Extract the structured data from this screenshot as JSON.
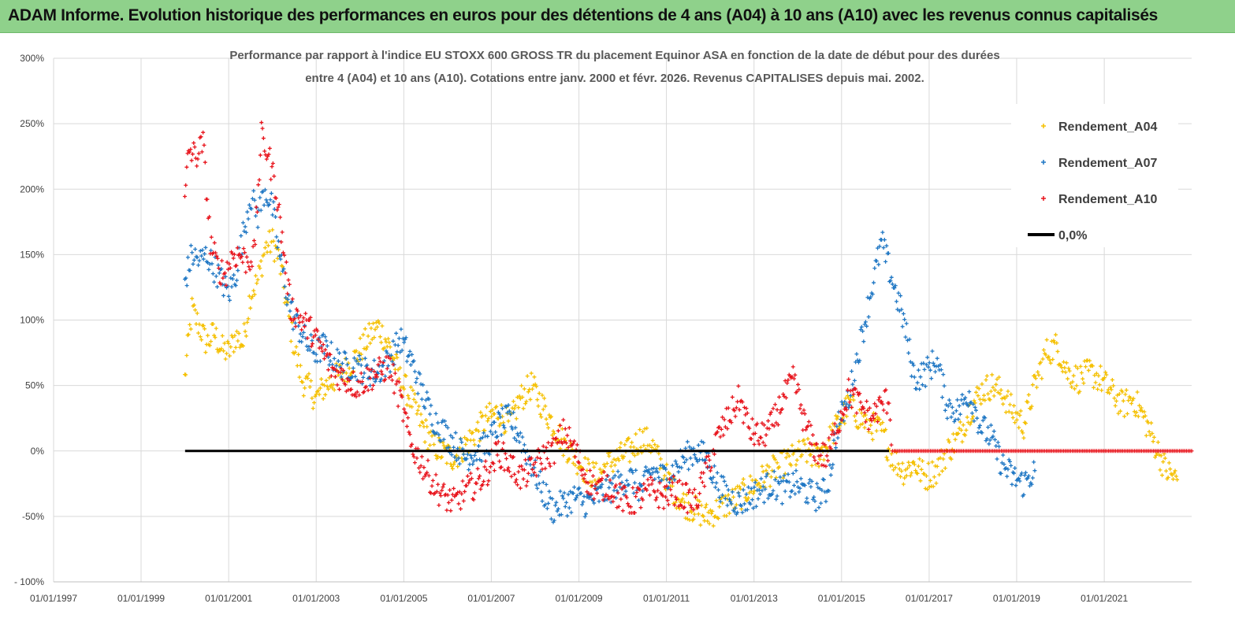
{
  "header": {
    "title": "ADAM Informe. Evolution historique des performances en euros pour des détentions de 4 ans (A04) à 10 ans (A10) avec les revenus connus capitalisés"
  },
  "chart_data": {
    "type": "scatter",
    "title_line1": "Performance par rapport à l'indice EU STOXX 600 GROSS TR  du placement Equinor ASA en fonction de la date de début pour des durées",
    "title_line2": "entre 4 (A04) et 10 ans (A10). Cotations entre janv. 2000 et févr. 2026. Revenus CAPITALISES depuis mai. 2002.",
    "xlabel": "",
    "ylabel": "",
    "x_ticks": [
      "01/01/1997",
      "01/01/1999",
      "01/01/2001",
      "01/01/2003",
      "01/01/2005",
      "01/01/2007",
      "01/01/2009",
      "01/01/2011",
      "01/01/2013",
      "01/01/2015",
      "01/01/2017",
      "01/01/2019",
      "01/01/2021"
    ],
    "y_ticks": [
      "300%",
      "250%",
      "200%",
      "150%",
      "100%",
      "50%",
      "0%",
      "-50%",
      "- 100%"
    ],
    "ylim": [
      -100,
      300
    ],
    "xlim": [
      "1997-01-01",
      "2022-12-31"
    ],
    "grid": true,
    "legend_position": "top-right",
    "reference_line": {
      "name": "0,0%",
      "value": 0,
      "from": "2000-01-03",
      "to": "2016-02-01",
      "color": "#000000"
    },
    "series": [
      {
        "name": "Rendement_A04",
        "color": "#f5c000",
        "points": [
          [
            "2000-01-01",
            55
          ],
          [
            "2000-02-01",
            85
          ],
          [
            "2000-03-01",
            108
          ],
          [
            "2000-05-01",
            95
          ],
          [
            "2000-07-01",
            82
          ],
          [
            "2000-09-01",
            90
          ],
          [
            "2000-11-01",
            78
          ],
          [
            "2001-01-01",
            75
          ],
          [
            "2001-03-01",
            88
          ],
          [
            "2001-05-01",
            82
          ],
          [
            "2001-07-01",
            120
          ],
          [
            "2001-09-01",
            130
          ],
          [
            "2001-11-01",
            155
          ],
          [
            "2002-01-01",
            160
          ],
          [
            "2002-03-01",
            145
          ],
          [
            "2002-05-01",
            110
          ],
          [
            "2002-07-01",
            80
          ],
          [
            "2002-09-01",
            55
          ],
          [
            "2002-11-01",
            48
          ],
          [
            "2003-01-01",
            40
          ],
          [
            "2003-03-01",
            48
          ],
          [
            "2003-06-01",
            55
          ],
          [
            "2003-09-01",
            62
          ],
          [
            "2003-12-01",
            72
          ],
          [
            "2004-03-01",
            85
          ],
          [
            "2004-06-01",
            95
          ],
          [
            "2004-09-01",
            80
          ],
          [
            "2004-12-01",
            55
          ],
          [
            "2005-03-01",
            40
          ],
          [
            "2005-06-01",
            20
          ],
          [
            "2005-09-01",
            5
          ],
          [
            "2005-12-01",
            -2
          ],
          [
            "2006-03-01",
            -5
          ],
          [
            "2006-06-01",
            5
          ],
          [
            "2006-09-01",
            15
          ],
          [
            "2006-12-01",
            25
          ],
          [
            "2007-03-01",
            30
          ],
          [
            "2007-06-01",
            20
          ],
          [
            "2007-09-01",
            40
          ],
          [
            "2007-12-01",
            50
          ],
          [
            "2008-03-01",
            35
          ],
          [
            "2008-06-01",
            20
          ],
          [
            "2008-09-01",
            5
          ],
          [
            "2008-12-01",
            -5
          ],
          [
            "2009-03-01",
            -15
          ],
          [
            "2009-06-01",
            -20
          ],
          [
            "2009-09-01",
            -10
          ],
          [
            "2009-12-01",
            -5
          ],
          [
            "2010-03-01",
            0
          ],
          [
            "2010-06-01",
            10
          ],
          [
            "2010-09-01",
            5
          ],
          [
            "2010-12-01",
            -15
          ],
          [
            "2011-03-01",
            -30
          ],
          [
            "2011-06-01",
            -40
          ],
          [
            "2011-09-01",
            -45
          ],
          [
            "2011-12-01",
            -50
          ],
          [
            "2012-03-01",
            -45
          ],
          [
            "2012-06-01",
            -40
          ],
          [
            "2012-09-01",
            -35
          ],
          [
            "2012-12-01",
            -28
          ],
          [
            "2013-03-01",
            -22
          ],
          [
            "2013-06-01",
            -15
          ],
          [
            "2013-09-01",
            -10
          ],
          [
            "2013-12-01",
            -5
          ],
          [
            "2014-03-01",
            0
          ],
          [
            "2014-06-01",
            -5
          ],
          [
            "2014-09-01",
            5
          ],
          [
            "2014-12-01",
            20
          ],
          [
            "2015-03-01",
            35
          ],
          [
            "2015-06-01",
            25
          ],
          [
            "2015-09-01",
            20
          ],
          [
            "2015-12-01",
            15
          ],
          [
            "2016-03-01",
            -5
          ],
          [
            "2016-06-01",
            -15
          ],
          [
            "2016-09-01",
            -10
          ],
          [
            "2016-12-01",
            -20
          ],
          [
            "2017-03-01",
            -15
          ],
          [
            "2017-06-01",
            0
          ],
          [
            "2017-09-01",
            10
          ],
          [
            "2017-12-01",
            30
          ],
          [
            "2018-03-01",
            45
          ],
          [
            "2018-06-01",
            50
          ],
          [
            "2018-09-01",
            45
          ],
          [
            "2018-12-01",
            30
          ],
          [
            "2019-03-01",
            20
          ],
          [
            "2019-06-01",
            50
          ],
          [
            "2019-09-01",
            75
          ],
          [
            "2019-12-01",
            80
          ],
          [
            "2020-03-01",
            60
          ],
          [
            "2020-06-01",
            55
          ],
          [
            "2020-09-01",
            60
          ],
          [
            "2020-12-01",
            55
          ],
          [
            "2021-03-01",
            45
          ],
          [
            "2021-06-01",
            35
          ],
          [
            "2021-09-01",
            40
          ],
          [
            "2021-12-01",
            25
          ],
          [
            "2022-03-01",
            5
          ],
          [
            "2022-06-01",
            -15
          ],
          [
            "2022-09-01",
            -22
          ]
        ]
      },
      {
        "name": "Rendement_A07",
        "color": "#1f77c4",
        "points": [
          [
            "2000-01-01",
            130
          ],
          [
            "2000-03-01",
            150
          ],
          [
            "2000-05-01",
            145
          ],
          [
            "2000-07-01",
            150
          ],
          [
            "2000-09-01",
            140
          ],
          [
            "2000-11-01",
            130
          ],
          [
            "2001-01-01",
            120
          ],
          [
            "2001-03-01",
            135
          ],
          [
            "2001-05-01",
            165
          ],
          [
            "2001-07-01",
            195
          ],
          [
            "2001-09-01",
            180
          ],
          [
            "2001-11-01",
            200
          ],
          [
            "2002-01-01",
            185
          ],
          [
            "2002-03-01",
            150
          ],
          [
            "2002-05-01",
            120
          ],
          [
            "2002-07-01",
            100
          ],
          [
            "2002-09-01",
            90
          ],
          [
            "2002-11-01",
            80
          ],
          [
            "2003-01-01",
            75
          ],
          [
            "2003-03-01",
            80
          ],
          [
            "2003-06-01",
            70
          ],
          [
            "2003-09-01",
            65
          ],
          [
            "2003-12-01",
            65
          ],
          [
            "2004-03-01",
            60
          ],
          [
            "2004-06-01",
            60
          ],
          [
            "2004-09-01",
            70
          ],
          [
            "2004-12-01",
            85
          ],
          [
            "2005-03-01",
            70
          ],
          [
            "2005-06-01",
            45
          ],
          [
            "2005-09-01",
            25
          ],
          [
            "2005-12-01",
            15
          ],
          [
            "2006-03-01",
            5
          ],
          [
            "2006-06-01",
            -5
          ],
          [
            "2006-09-01",
            0
          ],
          [
            "2006-12-01",
            5
          ],
          [
            "2007-03-01",
            20
          ],
          [
            "2007-06-01",
            25
          ],
          [
            "2007-09-01",
            10
          ],
          [
            "2007-12-01",
            -10
          ],
          [
            "2008-03-01",
            -30
          ],
          [
            "2008-06-01",
            -45
          ],
          [
            "2008-09-01",
            -40
          ],
          [
            "2008-12-01",
            -35
          ],
          [
            "2009-03-01",
            -40
          ],
          [
            "2009-06-01",
            -35
          ],
          [
            "2009-09-01",
            -30
          ],
          [
            "2009-12-01",
            -25
          ],
          [
            "2010-03-01",
            -20
          ],
          [
            "2010-06-01",
            -30
          ],
          [
            "2010-09-01",
            -15
          ],
          [
            "2010-12-01",
            -20
          ],
          [
            "2011-03-01",
            -15
          ],
          [
            "2011-06-01",
            -5
          ],
          [
            "2011-09-01",
            0
          ],
          [
            "2011-12-01",
            -5
          ],
          [
            "2012-03-01",
            -25
          ],
          [
            "2012-06-01",
            -35
          ],
          [
            "2012-09-01",
            -40
          ],
          [
            "2012-12-01",
            -35
          ],
          [
            "2013-03-01",
            -30
          ],
          [
            "2013-06-01",
            -25
          ],
          [
            "2013-09-01",
            -30
          ],
          [
            "2013-12-01",
            -25
          ],
          [
            "2014-03-01",
            -30
          ],
          [
            "2014-06-01",
            -35
          ],
          [
            "2014-09-01",
            -30
          ],
          [
            "2014-12-01",
            20
          ],
          [
            "2015-03-01",
            40
          ],
          [
            "2015-06-01",
            80
          ],
          [
            "2015-09-01",
            120
          ],
          [
            "2015-12-01",
            160
          ],
          [
            "2016-03-01",
            130
          ],
          [
            "2016-06-01",
            100
          ],
          [
            "2016-09-01",
            55
          ],
          [
            "2016-12-01",
            60
          ],
          [
            "2017-03-01",
            70
          ],
          [
            "2017-06-01",
            35
          ],
          [
            "2017-09-01",
            30
          ],
          [
            "2017-12-01",
            45
          ],
          [
            "2018-03-01",
            20
          ],
          [
            "2018-06-01",
            10
          ],
          [
            "2018-09-01",
            -10
          ],
          [
            "2018-12-01",
            -20
          ],
          [
            "2019-03-01",
            -25
          ],
          [
            "2019-06-01",
            -15
          ]
        ]
      },
      {
        "name": "Rendement_A10",
        "color": "#e8141c",
        "points": [
          [
            "2000-01-01",
            190
          ],
          [
            "2000-02-01",
            230
          ],
          [
            "2000-04-01",
            225
          ],
          [
            "2000-06-01",
            235
          ],
          [
            "2000-08-01",
            160
          ],
          [
            "2000-10-01",
            140
          ],
          [
            "2000-12-01",
            135
          ],
          [
            "2001-02-01",
            150
          ],
          [
            "2001-04-01",
            150
          ],
          [
            "2001-06-01",
            145
          ],
          [
            "2001-08-01",
            150
          ],
          [
            "2001-10-01",
            240
          ],
          [
            "2001-12-01",
            225
          ],
          [
            "2002-02-01",
            200
          ],
          [
            "2002-04-01",
            155
          ],
          [
            "2002-06-01",
            110
          ],
          [
            "2002-09-01",
            100
          ],
          [
            "2002-12-01",
            90
          ],
          [
            "2003-03-01",
            75
          ],
          [
            "2003-06-01",
            60
          ],
          [
            "2003-09-01",
            55
          ],
          [
            "2003-12-01",
            50
          ],
          [
            "2004-03-01",
            55
          ],
          [
            "2004-06-01",
            60
          ],
          [
            "2004-09-01",
            65
          ],
          [
            "2004-12-01",
            40
          ],
          [
            "2005-03-01",
            5
          ],
          [
            "2005-06-01",
            -10
          ],
          [
            "2005-09-01",
            -25
          ],
          [
            "2005-12-01",
            -35
          ],
          [
            "2006-03-01",
            -40
          ],
          [
            "2006-06-01",
            -30
          ],
          [
            "2006-09-01",
            -25
          ],
          [
            "2006-12-01",
            -15
          ],
          [
            "2007-03-01",
            0
          ],
          [
            "2007-06-01",
            -10
          ],
          [
            "2007-09-01",
            -20
          ],
          [
            "2007-12-01",
            -15
          ],
          [
            "2008-03-01",
            -5
          ],
          [
            "2008-06-01",
            0
          ],
          [
            "2008-09-01",
            15
          ],
          [
            "2008-12-01",
            0
          ],
          [
            "2009-03-01",
            -20
          ],
          [
            "2009-06-01",
            -30
          ],
          [
            "2009-09-01",
            -25
          ],
          [
            "2009-12-01",
            -35
          ],
          [
            "2010-03-01",
            -40
          ],
          [
            "2010-06-01",
            -35
          ],
          [
            "2010-09-01",
            -30
          ],
          [
            "2010-12-01",
            -35
          ],
          [
            "2011-03-01",
            -30
          ],
          [
            "2011-06-01",
            -35
          ],
          [
            "2011-09-01",
            -40
          ],
          [
            "2011-12-01",
            -15
          ],
          [
            "2012-03-01",
            10
          ],
          [
            "2012-06-01",
            25
          ],
          [
            "2012-09-01",
            40
          ],
          [
            "2012-12-01",
            15
          ],
          [
            "2013-03-01",
            10
          ],
          [
            "2013-06-01",
            20
          ],
          [
            "2013-09-01",
            40
          ],
          [
            "2013-12-01",
            55
          ],
          [
            "2014-03-01",
            20
          ],
          [
            "2014-06-01",
            0
          ],
          [
            "2014-09-01",
            -5
          ],
          [
            "2014-12-01",
            20
          ],
          [
            "2015-03-01",
            45
          ],
          [
            "2015-06-01",
            35
          ],
          [
            "2015-09-01",
            25
          ],
          [
            "2015-12-01",
            35
          ],
          [
            "2016-02-01",
            40
          ],
          [
            "2016-03-01",
            0
          ],
          [
            "2022-12-31",
            0
          ]
        ]
      }
    ]
  }
}
